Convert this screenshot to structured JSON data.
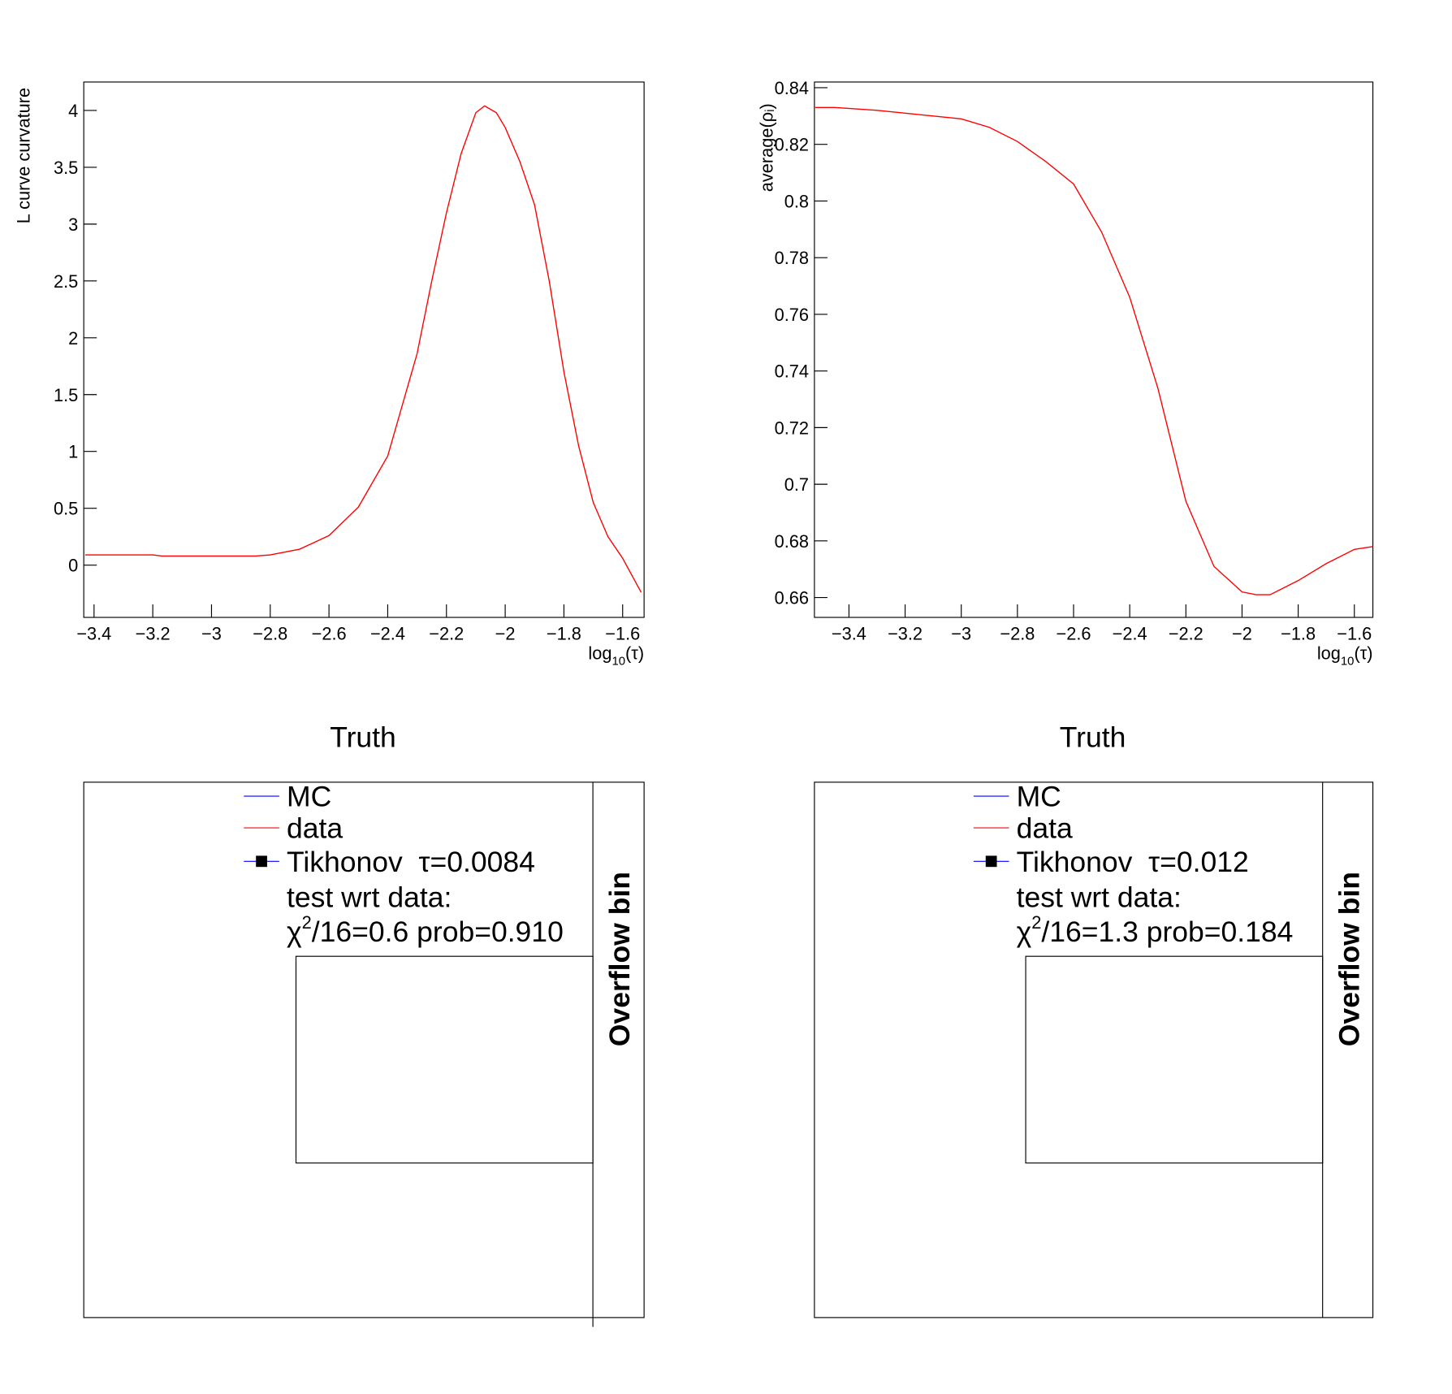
{
  "chart_data": [
    {
      "type": "line",
      "y_label": "L curve curvature",
      "x_label": [
        "log",
        "10",
        "(τ)"
      ],
      "x": [
        -3.43,
        -3.2,
        -3.17,
        -2.85,
        -2.8,
        -2.7,
        -2.6,
        -2.5,
        -2.4,
        -2.3,
        -2.25,
        -2.2,
        -2.15,
        -2.1,
        -2.07,
        -2.03,
        -2.0,
        -1.95,
        -1.9,
        -1.85,
        -1.8,
        -1.75,
        -1.7,
        -1.65,
        -1.6,
        -1.537
      ],
      "series": [
        {
          "color": "#ff0000",
          "values": [
            0.09,
            0.09,
            0.08,
            0.08,
            0.09,
            0.14,
            0.26,
            0.51,
            0.96,
            1.86,
            2.5,
            3.1,
            3.62,
            3.98,
            4.04,
            3.98,
            3.85,
            3.55,
            3.17,
            2.5,
            1.7,
            1.05,
            0.55,
            0.25,
            0.06,
            -0.24
          ]
        }
      ],
      "xlim": [
        -3.435,
        -1.527
      ],
      "ylim": [
        -0.46,
        4.25
      ],
      "xticks": [
        {
          "value": -3.4,
          "label": "−3.4"
        },
        {
          "value": -3.2,
          "label": "−3.2"
        },
        {
          "value": -3,
          "label": "−3"
        },
        {
          "value": -2.8,
          "label": "−2.8"
        },
        {
          "value": -2.6,
          "label": "−2.6"
        },
        {
          "value": -2.4,
          "label": "−2.4"
        },
        {
          "value": -2.2,
          "label": "−2.2"
        },
        {
          "value": -2,
          "label": "−2"
        },
        {
          "value": -1.8,
          "label": "−1.8"
        },
        {
          "value": -1.6,
          "label": "−1.6"
        }
      ],
      "yticks": [
        0,
        0.5,
        1,
        1.5,
        2,
        2.5,
        3,
        3.5,
        4
      ]
    },
    {
      "type": "line",
      "y_label": "average(ρᵢ)",
      "x_label": [
        "log",
        "10",
        "(τ)"
      ],
      "x": [
        -3.52,
        -3.45,
        -3.3,
        -3.2,
        -3.0,
        -2.9,
        -2.8,
        -2.7,
        -2.6,
        -2.5,
        -2.4,
        -2.3,
        -2.2,
        -2.1,
        -2.0,
        -1.95,
        -1.9,
        -1.8,
        -1.7,
        -1.6,
        -1.534
      ],
      "series": [
        {
          "color": "#ff0000",
          "values": [
            0.833,
            0.833,
            0.832,
            0.831,
            0.829,
            0.826,
            0.821,
            0.814,
            0.806,
            0.789,
            0.766,
            0.734,
            0.694,
            0.671,
            0.662,
            0.661,
            0.661,
            0.666,
            0.672,
            0.677,
            0.678
          ]
        }
      ],
      "xlim": [
        -3.523,
        -1.534
      ],
      "ylim": [
        0.653,
        0.842
      ],
      "xticks": [
        {
          "value": -3.4,
          "label": "−3.4"
        },
        {
          "value": -3.2,
          "label": "−3.2"
        },
        {
          "value": -3,
          "label": "−3"
        },
        {
          "value": -2.8,
          "label": "−2.8"
        },
        {
          "value": -2.6,
          "label": "−2.6"
        },
        {
          "value": -2.4,
          "label": "−2.4"
        },
        {
          "value": -2.2,
          "label": "−2.2"
        },
        {
          "value": -2,
          "label": "−2"
        },
        {
          "value": -1.8,
          "label": "−1.8"
        },
        {
          "value": -1.6,
          "label": "−1.6"
        }
      ],
      "yticks": [
        0.66,
        0.68,
        0.7,
        0.72,
        0.74,
        0.76,
        0.78,
        0.8,
        0.82,
        0.84
      ]
    },
    {
      "type": "hist",
      "title": "Truth",
      "series": [
        {
          "name": "MC",
          "color": "#0000ff"
        },
        {
          "name": "data",
          "color": "#ff0000"
        },
        {
          "name": "Tikhonov  τ=0.0084",
          "color": "#0000ff"
        }
      ],
      "annotations": [
        "test wrt data:",
        [
          "χ",
          "2",
          "/16=0.6 prob=0.910"
        ]
      ],
      "overflow_label": "Overflow bin"
    },
    {
      "type": "hist",
      "title": "Truth",
      "series": [
        {
          "name": "MC",
          "color": "#0000ff"
        },
        {
          "name": "data",
          "color": "#ff0000"
        },
        {
          "name": "Tikhonov  τ=0.012",
          "color": "#0000ff"
        }
      ],
      "annotations": [
        "test wrt data:",
        [
          "χ",
          "2",
          "/16=1.3 prob=0.184"
        ]
      ],
      "overflow_label": "Overflow bin"
    }
  ]
}
